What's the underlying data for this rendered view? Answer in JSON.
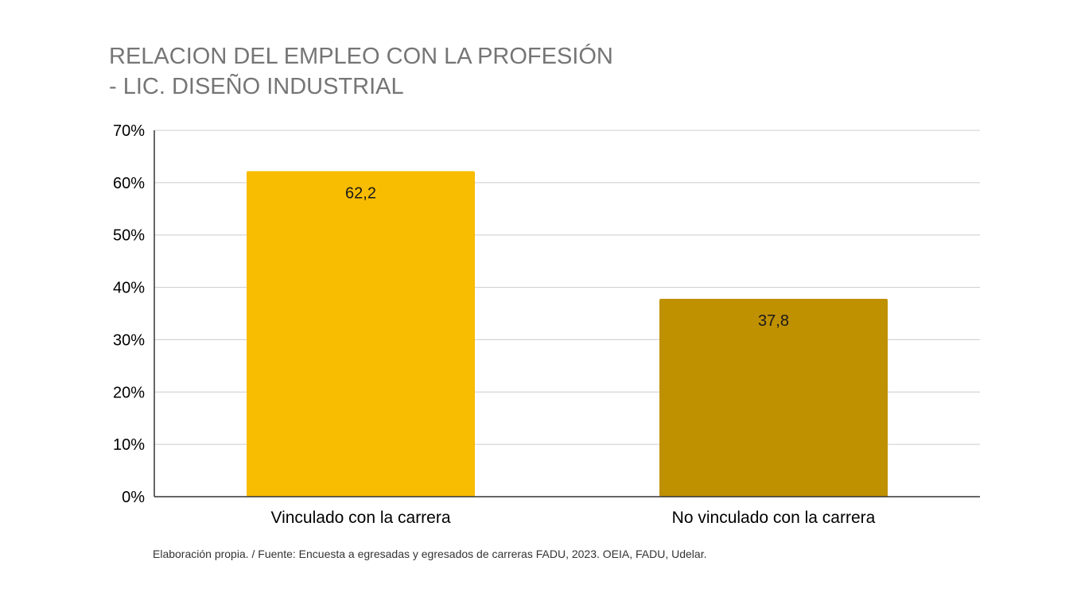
{
  "chart_data": {
    "type": "bar",
    "title": "RELACION DEL EMPLEO CON LA PROFESIÓN\n- LIC. DISEÑO INDUSTRIAL",
    "categories": [
      "Vinculado con la carrera",
      "No vinculado con la carrera"
    ],
    "values": [
      62.2,
      37.8
    ],
    "data_labels": [
      "62,2",
      "37,8"
    ],
    "bar_colors": [
      "#F8BC00",
      "#BF9000"
    ],
    "ylim": [
      0,
      70
    ],
    "yticks": [
      0,
      10,
      20,
      30,
      40,
      50,
      60,
      70
    ],
    "ytick_labels": [
      "0%",
      "10%",
      "20%",
      "30%",
      "40%",
      "50%",
      "60%",
      "70%"
    ],
    "xlabel": "",
    "ylabel": "",
    "grid": true,
    "legend": "none"
  },
  "source_note": "Elaboración propia. / Fuente: Encuesta a egresadas y egresados de carreras FADU, 2023. OEIA, FADU, Udelar."
}
